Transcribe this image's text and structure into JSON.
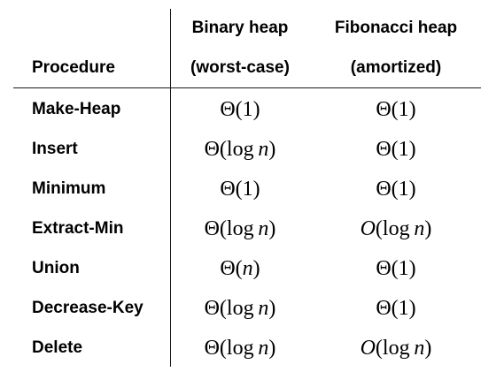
{
  "header": {
    "procedure": "Procedure",
    "binary_line1": "Binary heap",
    "binary_line2": "(worst-case)",
    "fib_line1": "Fibonacci heap",
    "fib_line2": "(amortized)"
  },
  "rows": [
    {
      "procedure": "Make-Heap",
      "binary_op": "Θ",
      "binary_arg": "1",
      "fib_op": "Θ",
      "fib_arg": "1"
    },
    {
      "procedure": "Insert",
      "binary_op": "Θ",
      "binary_arg": "log n",
      "fib_op": "Θ",
      "fib_arg": "1"
    },
    {
      "procedure": "Minimum",
      "binary_op": "Θ",
      "binary_arg": "1",
      "fib_op": "Θ",
      "fib_arg": "1"
    },
    {
      "procedure": "Extract-Min",
      "binary_op": "Θ",
      "binary_arg": "log n",
      "fib_op": "O",
      "fib_arg": "log n"
    },
    {
      "procedure": "Union",
      "binary_op": "Θ",
      "binary_arg": "n",
      "fib_op": "Θ",
      "fib_arg": "1"
    },
    {
      "procedure": "Decrease-Key",
      "binary_op": "Θ",
      "binary_arg": "log n",
      "fib_op": "Θ",
      "fib_arg": "1"
    },
    {
      "procedure": "Delete",
      "binary_op": "Θ",
      "binary_arg": "log n",
      "fib_op": "O",
      "fib_arg": "log n"
    }
  ]
}
